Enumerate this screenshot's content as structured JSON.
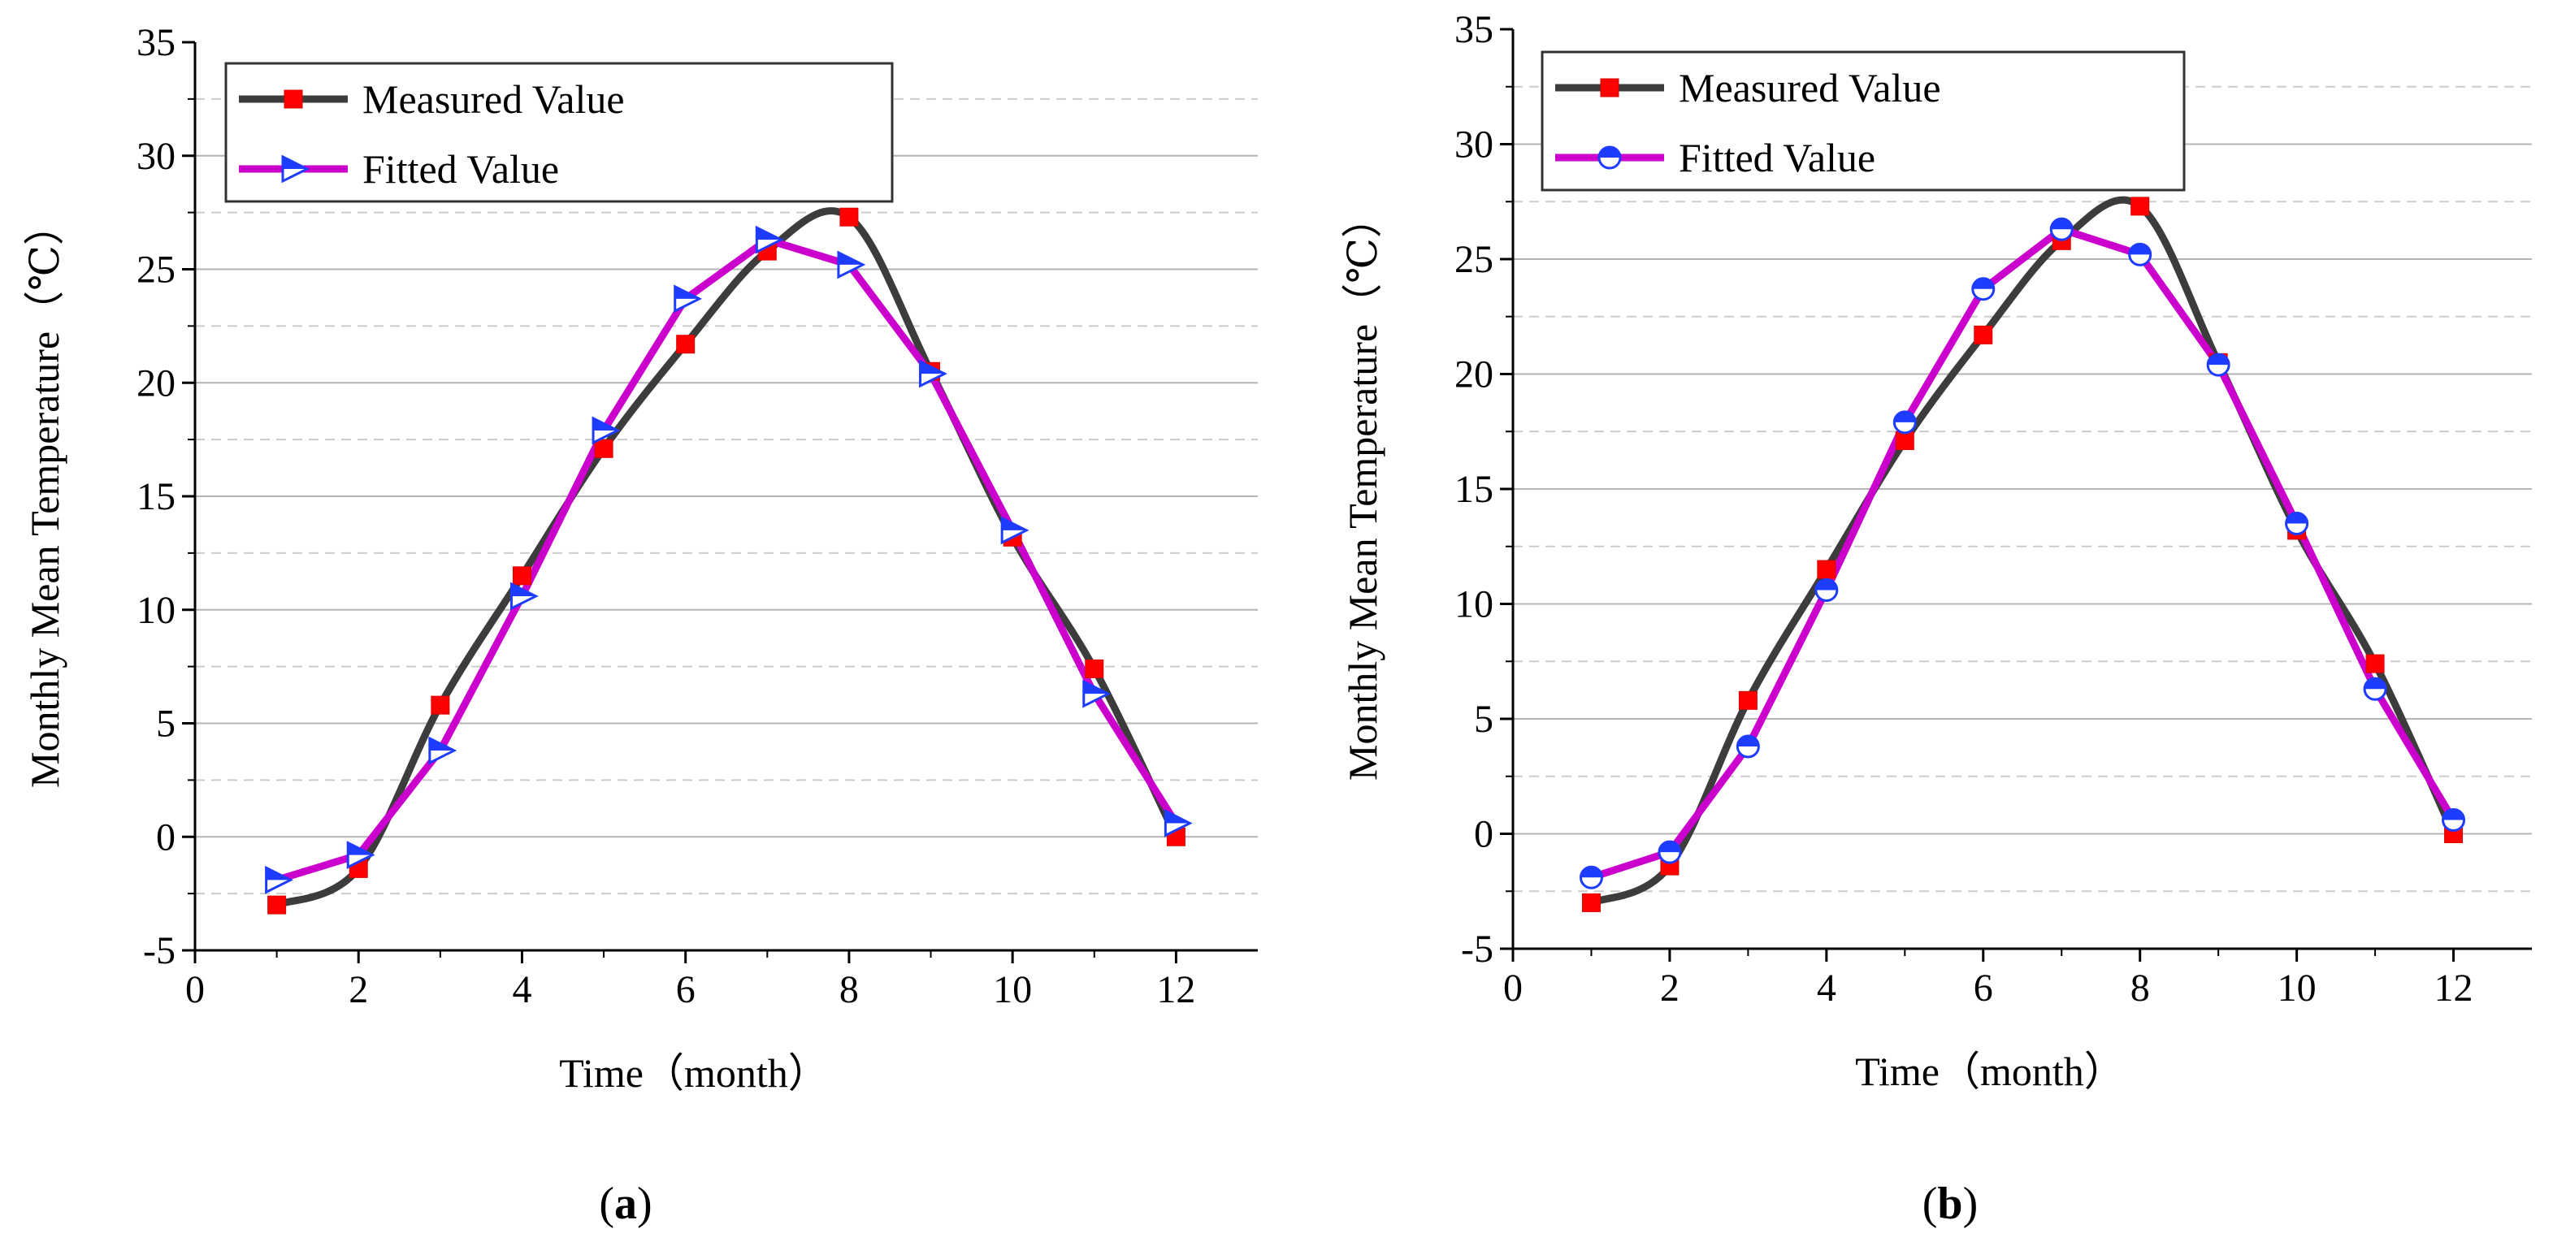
{
  "chart_data": [
    {
      "type": "line",
      "panel_label": "a",
      "xlabel": "Time（month）",
      "ylabel": "Monthly Mean Temperature（℃）",
      "xlim": [
        0,
        13
      ],
      "ylim": [
        -5,
        35
      ],
      "xticks": [
        0,
        2,
        4,
        6,
        8,
        10,
        12
      ],
      "yticks": [
        -5,
        0,
        5,
        10,
        15,
        20,
        25,
        30,
        35
      ],
      "grid": true,
      "legend_position": "top-left",
      "x": [
        1,
        2,
        3,
        4,
        5,
        6,
        7,
        8,
        9,
        10,
        11,
        12
      ],
      "series": [
        {
          "name": "Measured Value",
          "line_color": "#3c3c3c",
          "marker": "square",
          "marker_color": "#ff0000",
          "smooth": true,
          "values": [
            -3.0,
            -1.4,
            5.8,
            11.5,
            17.1,
            21.7,
            25.8,
            27.3,
            20.5,
            13.2,
            7.4,
            0.0
          ]
        },
        {
          "name": "Fitted Value",
          "line_color": "#cc00cc",
          "marker": "triangle-right",
          "marker_color": "#1e3cff",
          "smooth": false,
          "values": [
            -1.9,
            -0.8,
            3.8,
            10.6,
            17.9,
            23.7,
            26.3,
            25.2,
            20.4,
            13.5,
            6.3,
            0.6
          ]
        }
      ]
    },
    {
      "type": "line",
      "panel_label": "b",
      "xlabel": "Time（month）",
      "ylabel": "Monthly Mean Temperature（℃）",
      "xlim": [
        0,
        13
      ],
      "ylim": [
        -5,
        35
      ],
      "xticks": [
        0,
        2,
        4,
        6,
        8,
        10,
        12
      ],
      "yticks": [
        -5,
        0,
        5,
        10,
        15,
        20,
        25,
        30,
        35
      ],
      "grid": true,
      "legend_position": "top-left",
      "x": [
        1,
        2,
        3,
        4,
        5,
        6,
        7,
        8,
        9,
        10,
        11,
        12
      ],
      "series": [
        {
          "name": "Measured Value",
          "line_color": "#3c3c3c",
          "marker": "square",
          "marker_color": "#ff0000",
          "smooth": true,
          "values": [
            -3.0,
            -1.4,
            5.8,
            11.5,
            17.1,
            21.7,
            25.8,
            27.3,
            20.5,
            13.2,
            7.4,
            0.0
          ]
        },
        {
          "name": "Fitted Value",
          "line_color": "#cc00cc",
          "marker": "half-circle",
          "marker_color": "#1e3cff",
          "smooth": false,
          "values": [
            -1.9,
            -0.8,
            3.8,
            10.6,
            17.9,
            23.7,
            26.3,
            25.2,
            20.4,
            13.5,
            6.3,
            0.6
          ]
        }
      ]
    }
  ]
}
